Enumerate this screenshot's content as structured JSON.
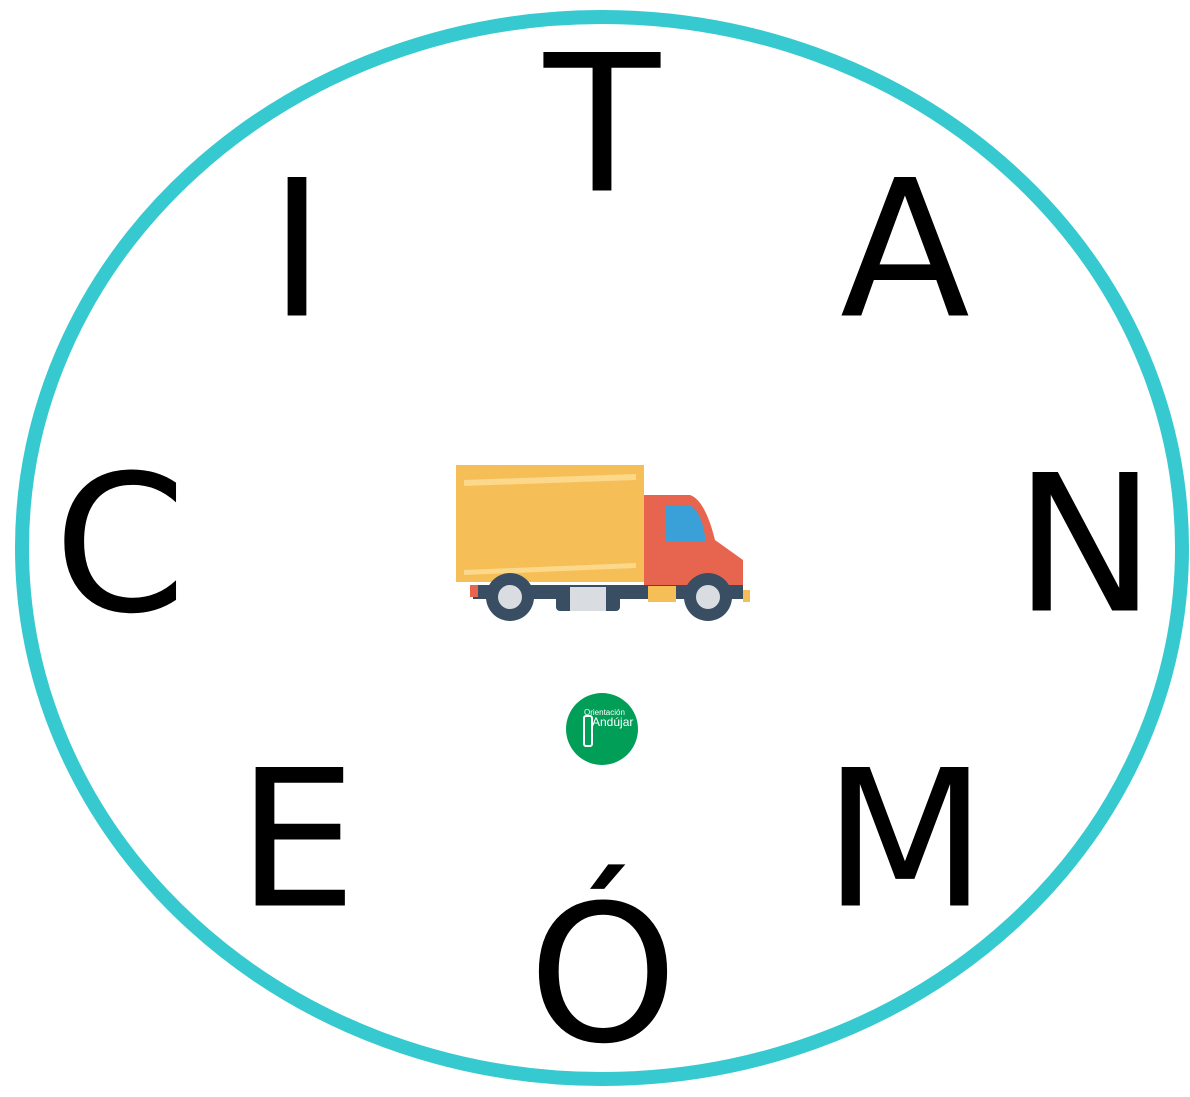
{
  "letters": [
    "T",
    "A",
    "N",
    "M",
    "Ó",
    "E",
    "C",
    "I"
  ],
  "logo": {
    "line1": "Orientación",
    "line2": "Andújar"
  }
}
